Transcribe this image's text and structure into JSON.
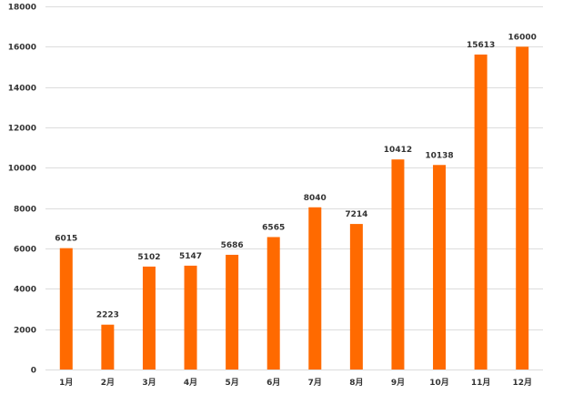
{
  "colors": {
    "bar": "#ff6a00",
    "grid": "#dcdcdc",
    "text": "#333333"
  },
  "chart_data": {
    "type": "bar",
    "title": "",
    "xlabel": "",
    "ylabel": "",
    "categories": [
      "1月",
      "2月",
      "3月",
      "4月",
      "5月",
      "6月",
      "7月",
      "8月",
      "9月",
      "10月",
      "11月",
      "12月"
    ],
    "values": [
      6015,
      2223,
      5102,
      5147,
      5686,
      6565,
      8040,
      7214,
      10412,
      10138,
      15613,
      16000
    ],
    "data_labels": [
      "6015",
      "2223",
      "5102",
      "5147",
      "5686",
      "6565",
      "8040",
      "7214",
      "10412",
      "10138",
      "15613",
      "16000"
    ],
    "ylim": [
      0,
      18000
    ],
    "yticks": [
      0,
      2000,
      4000,
      6000,
      8000,
      10000,
      12000,
      14000,
      16000,
      18000
    ],
    "ytick_labels": [
      "0",
      "2000",
      "4000",
      "6000",
      "8000",
      "10000",
      "12000",
      "14000",
      "16000",
      "18000"
    ],
    "grid": true,
    "legend": "none"
  }
}
